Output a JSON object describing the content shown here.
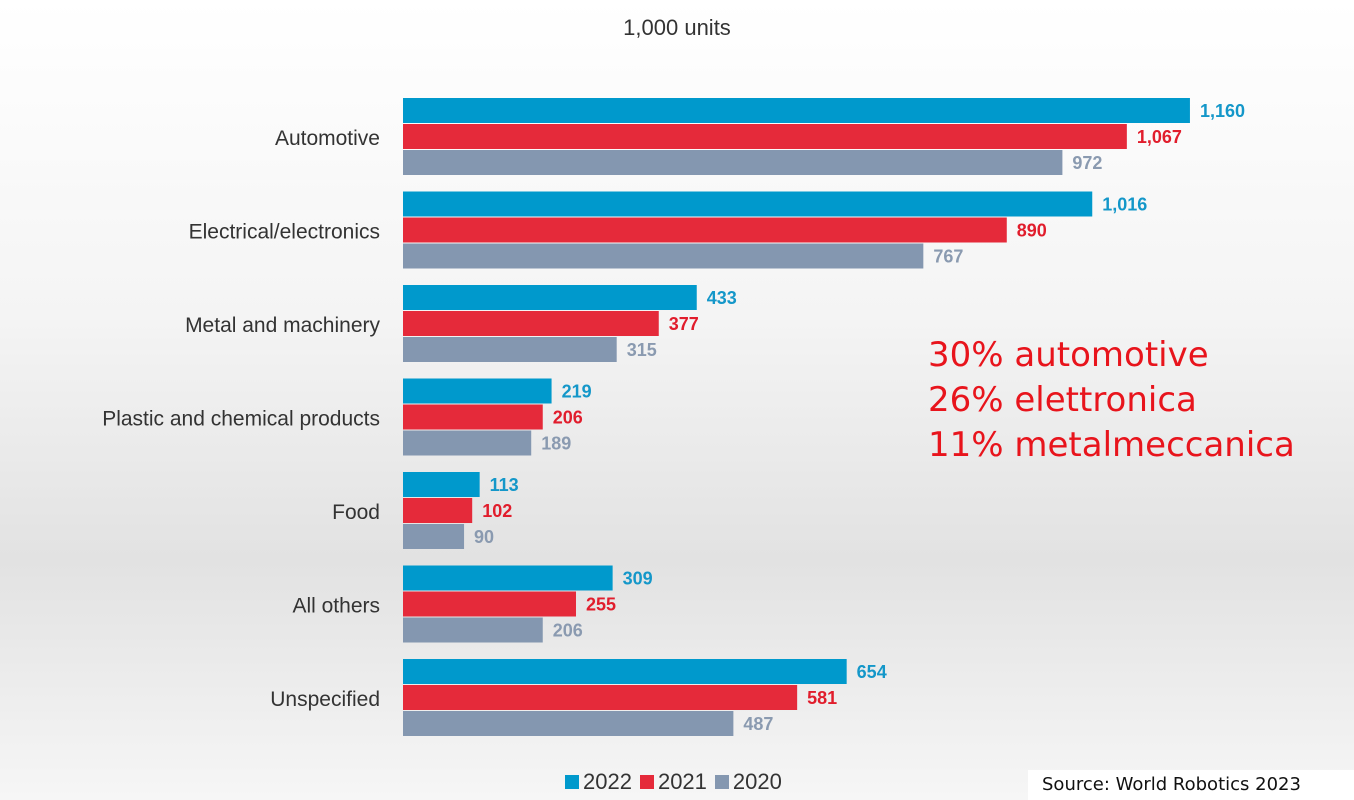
{
  "subtitle": "1,000 units",
  "callout": {
    "lines": [
      "30% automotive",
      "26% elettronica",
      "11% metalmeccanica"
    ],
    "color": "#e8141c"
  },
  "source": "Source: World Robotics 2023",
  "chart_data": {
    "type": "bar",
    "orientation": "horizontal",
    "categories": [
      "Automotive",
      "Electrical/electronics",
      "Metal and machinery",
      "Plastic and chemical products",
      "Food",
      "All others",
      "Unspecified"
    ],
    "series": [
      {
        "name": "2022",
        "color": "#0099cc",
        "values": [
          1160,
          1016,
          433,
          219,
          113,
          309,
          654
        ],
        "labels": [
          "1,160",
          "1,016",
          "433",
          "219",
          "113",
          "309",
          "654"
        ]
      },
      {
        "name": "2021",
        "color": "#e52a3a",
        "values": [
          1067,
          890,
          377,
          206,
          102,
          255,
          581
        ],
        "labels": [
          "1,067",
          "890",
          "377",
          "206",
          "102",
          "255",
          "581"
        ]
      },
      {
        "name": "2020",
        "color": "#8497b0",
        "values": [
          972,
          767,
          315,
          189,
          90,
          206,
          487
        ],
        "labels": [
          "972",
          "767",
          "315",
          "189",
          "90",
          "206",
          "487"
        ]
      }
    ],
    "xlim": [
      0,
      1200
    ],
    "grid": false,
    "legend": "bottom"
  }
}
